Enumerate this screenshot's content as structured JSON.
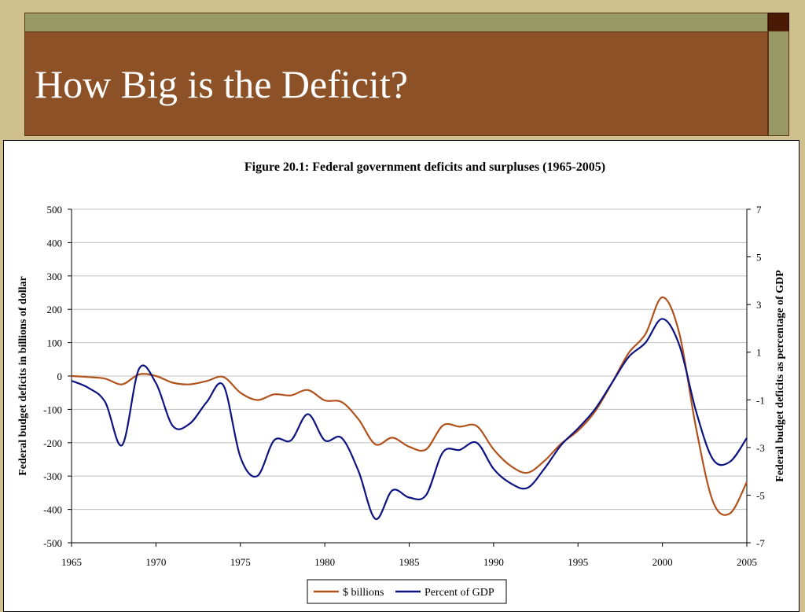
{
  "slide": {
    "title": "How Big is the Deficit?"
  },
  "colors": {
    "background": "#cfc08e",
    "title_band": "#8c5127",
    "strip": "#999966",
    "corner": "#4a1a05",
    "series_billions": "#b0521c",
    "series_gdp": "#0d1380"
  },
  "chart_data": {
    "type": "line",
    "title": "Figure 20.1: Federal government deficits and surpluses (1965-2005)",
    "ylabel": "Federal budget deficits in billions of dollar",
    "y2label": "Federal budget deficits as percentage of GDP",
    "xlim": [
      1965,
      2005
    ],
    "ylim": [
      -500,
      500
    ],
    "y2lim": [
      -7,
      7
    ],
    "x_ticks": [
      "1965",
      "1970",
      "1975",
      "1980",
      "1985",
      "1990",
      "1995",
      "2000",
      "2005"
    ],
    "y_ticks": [
      "500",
      "400",
      "300",
      "200",
      "100",
      "0",
      "-100",
      "-200",
      "-300",
      "-400",
      "-500"
    ],
    "y2_ticks": [
      "7",
      "5",
      "3",
      "1",
      "-1",
      "-3",
      "-5",
      "-7"
    ],
    "grid": true,
    "legend_position": "bottom-center",
    "series": [
      {
        "name": "$ billions",
        "axis": "left",
        "color": "#b0521c",
        "points": [
          [
            1965,
            0
          ],
          [
            1966,
            -3
          ],
          [
            1967,
            -8
          ],
          [
            1968,
            -25
          ],
          [
            1969,
            5
          ],
          [
            1970,
            0
          ],
          [
            1971,
            -20
          ],
          [
            1972,
            -25
          ],
          [
            1973,
            -15
          ],
          [
            1974,
            -3
          ],
          [
            1975,
            -50
          ],
          [
            1976,
            -72
          ],
          [
            1977,
            -55
          ],
          [
            1978,
            -58
          ],
          [
            1979,
            -42
          ],
          [
            1980,
            -73
          ],
          [
            1981,
            -78
          ],
          [
            1982,
            -130
          ],
          [
            1983,
            -205
          ],
          [
            1984,
            -185
          ],
          [
            1985,
            -212
          ],
          [
            1986,
            -220
          ],
          [
            1987,
            -148
          ],
          [
            1988,
            -152
          ],
          [
            1989,
            -150
          ],
          [
            1990,
            -220
          ],
          [
            1991,
            -269
          ],
          [
            1992,
            -290
          ],
          [
            1993,
            -255
          ],
          [
            1994,
            -203
          ],
          [
            1995,
            -164
          ],
          [
            1996,
            -107
          ],
          [
            1997,
            -22
          ],
          [
            1998,
            69
          ],
          [
            1999,
            126
          ],
          [
            2000,
            236
          ],
          [
            2001,
            128
          ],
          [
            2002,
            -158
          ],
          [
            2003,
            -377
          ],
          [
            2004,
            -412
          ],
          [
            2005,
            -318
          ]
        ]
      },
      {
        "name": "Percent of GDP",
        "axis": "right",
        "color": "#0d1380",
        "points": [
          [
            1965,
            -0.2
          ],
          [
            1966,
            -0.5
          ],
          [
            1967,
            -1.1
          ],
          [
            1968,
            -2.9
          ],
          [
            1969,
            0.3
          ],
          [
            1970,
            -0.3
          ],
          [
            1971,
            -2.1
          ],
          [
            1972,
            -2.0
          ],
          [
            1973,
            -1.1
          ],
          [
            1974,
            -0.4
          ],
          [
            1975,
            -3.4
          ],
          [
            1976,
            -4.2
          ],
          [
            1977,
            -2.7
          ],
          [
            1978,
            -2.7
          ],
          [
            1979,
            -1.6
          ],
          [
            1980,
            -2.7
          ],
          [
            1981,
            -2.6
          ],
          [
            1982,
            -4.0
          ],
          [
            1983,
            -6.0
          ],
          [
            1984,
            -4.8
          ],
          [
            1985,
            -5.1
          ],
          [
            1986,
            -5.0
          ],
          [
            1987,
            -3.2
          ],
          [
            1988,
            -3.1
          ],
          [
            1989,
            -2.8
          ],
          [
            1990,
            -3.9
          ],
          [
            1991,
            -4.5
          ],
          [
            1992,
            -4.7
          ],
          [
            1993,
            -3.9
          ],
          [
            1994,
            -2.9
          ],
          [
            1995,
            -2.2
          ],
          [
            1996,
            -1.4
          ],
          [
            1997,
            -0.3
          ],
          [
            1998,
            0.8
          ],
          [
            1999,
            1.4
          ],
          [
            2000,
            2.4
          ],
          [
            2001,
            1.3
          ],
          [
            2002,
            -1.5
          ],
          [
            2003,
            -3.5
          ],
          [
            2004,
            -3.6
          ],
          [
            2005,
            -2.6
          ]
        ]
      }
    ]
  }
}
